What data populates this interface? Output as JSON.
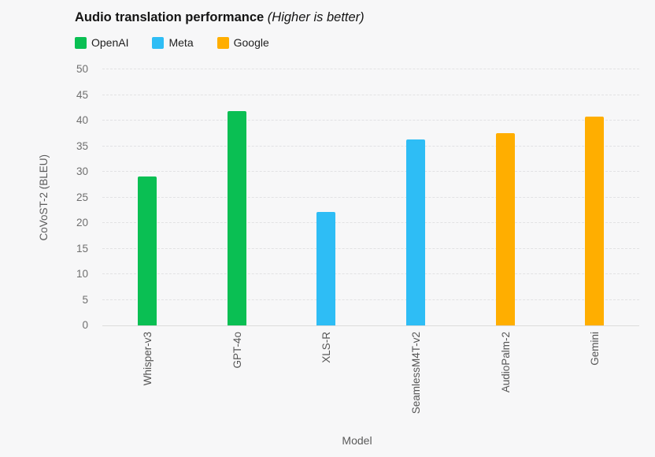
{
  "title": {
    "main": "Audio translation performance",
    "note": "(Higher is better)"
  },
  "legend": [
    {
      "label": "OpenAI",
      "color": "#0abf53"
    },
    {
      "label": "Meta",
      "color": "#2ebdf5"
    },
    {
      "label": "Google",
      "color": "#ffae00"
    }
  ],
  "colors": {
    "background": "#f7f7f8",
    "openai_green": "#0abf53",
    "meta_blue": "#2ebdf5",
    "google_orange": "#ffae00",
    "gridline": "#e2e2e4",
    "axis_line": "#dcdcdc",
    "tick_text": "#6f6f6f",
    "axis_title_text": "#5a5a5a",
    "title_text": "#141414"
  },
  "chart_data": {
    "type": "bar",
    "title": "Audio translation performance (Higher is better)",
    "categories": [
      "Whisper-v3",
      "GPT-4o",
      "XLS-R",
      "SeamlessM4T-v2",
      "AudioPalm-2",
      "Gemini"
    ],
    "values": [
      29.1,
      41.8,
      22.2,
      36.3,
      37.6,
      40.8
    ],
    "series_of_each_bar": [
      "OpenAI",
      "OpenAI",
      "Meta",
      "Meta",
      "Google",
      "Google"
    ],
    "bar_colors": [
      "#0abf53",
      "#0abf53",
      "#2ebdf5",
      "#2ebdf5",
      "#ffae00",
      "#ffae00"
    ],
    "xlabel": "Model",
    "ylabel": "CoVoST-2 (BLEU)",
    "ylim": [
      0,
      50
    ],
    "yticks": [
      0,
      5,
      10,
      15,
      20,
      25,
      30,
      35,
      40,
      45,
      50
    ],
    "grid": "horizontal-dashed",
    "legend_position": "top-left"
  }
}
